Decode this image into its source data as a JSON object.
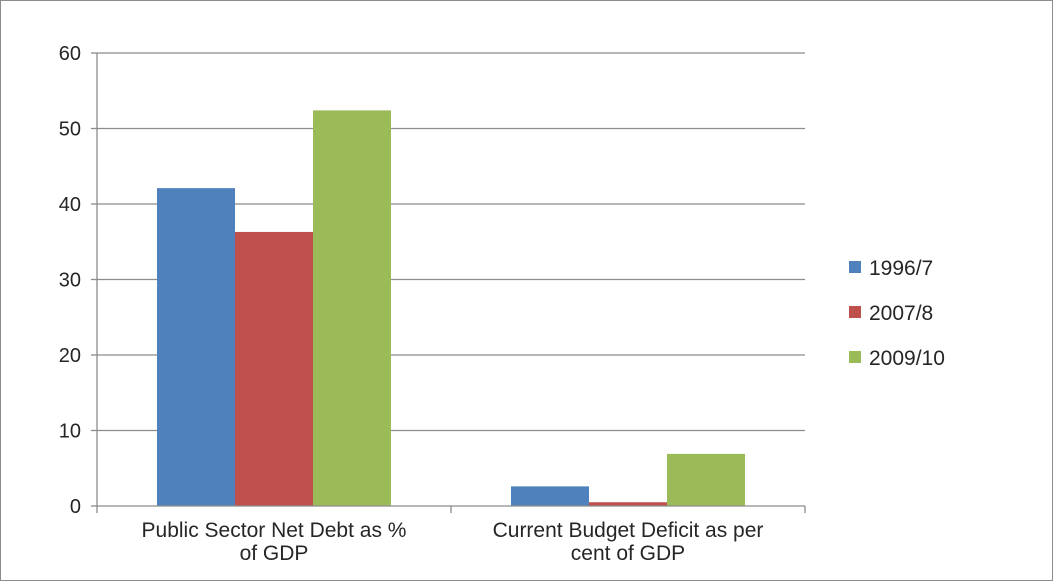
{
  "chart_data": {
    "type": "bar",
    "categories": [
      [
        "Public Sector Net Debt as %",
        "of GDP"
      ],
      [
        "Current Budget Deficit as per",
        "cent of GDP"
      ]
    ],
    "series": [
      {
        "name": "1996/7",
        "color": "#4F81BD",
        "values": [
          42.1,
          2.6
        ]
      },
      {
        "name": "2007/8",
        "color": "#C0504D",
        "values": [
          36.3,
          0.5
        ]
      },
      {
        "name": "2009/10",
        "color": "#9BBB59",
        "values": [
          52.4,
          6.9
        ]
      }
    ],
    "ylim": [
      0,
      60
    ],
    "yticks": [
      0,
      10,
      20,
      30,
      40,
      50,
      60
    ],
    "grid": true,
    "legend_position": "right",
    "title": "",
    "xlabel": "",
    "ylabel": ""
  }
}
